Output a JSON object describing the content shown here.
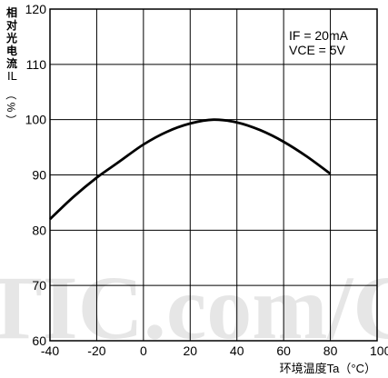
{
  "chart_data": {
    "type": "line",
    "ylabel": "相对光电流",
    "ylabel_symbol": "IL",
    "ylabel_unit": "（%）",
    "xlabel": "环境温度Ta（°C）",
    "xlim": [
      -40,
      100
    ],
    "ylim": [
      60,
      120
    ],
    "grid": true,
    "xticks": [
      -40,
      -20,
      0,
      20,
      40,
      60,
      80,
      100
    ],
    "yticks": [
      60,
      70,
      80,
      90,
      100,
      110,
      120
    ],
    "annotations": [
      "IF = 20mA",
      "VCE = 5V"
    ],
    "series": [
      {
        "x": [
          -40,
          -30,
          -20,
          -10,
          0,
          10,
          20,
          30,
          40,
          50,
          60,
          70,
          80
        ],
        "y": [
          82,
          86,
          89.5,
          92.5,
          95.5,
          97.8,
          99.3,
          100,
          99.5,
          98.1,
          96,
          93.3,
          90.2
        ]
      }
    ]
  },
  "watermark": "TIC.com/C",
  "colors": {
    "line": "#000000",
    "grid": "#000000",
    "watermark": "#e6e6e6"
  }
}
